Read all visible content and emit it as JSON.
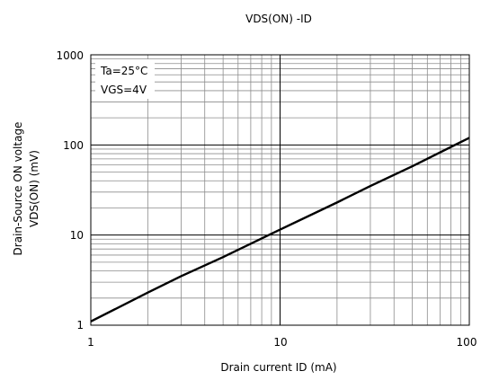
{
  "chart_data": {
    "type": "line",
    "title": "VDS(ON) -ID",
    "xlabel": "Drain current  ID (mA)",
    "ylabel_line1": "Drain-Source ON voltage",
    "ylabel_line2": "VDS(ON) (mV)",
    "x_scale": "log",
    "y_scale": "log",
    "xlim": [
      1,
      100
    ],
    "ylim": [
      1,
      1000
    ],
    "x_ticks": [
      "1",
      "10",
      "100"
    ],
    "y_ticks": [
      "1",
      "10",
      "100",
      "1000"
    ],
    "grid": true,
    "annotations": [
      "Ta=25°C",
      "VGS=4V"
    ],
    "series": [
      {
        "x": [
          1,
          2,
          3,
          5,
          10,
          20,
          30,
          50,
          100
        ],
        "y": [
          1.1,
          2.3,
          3.5,
          5.7,
          11.5,
          23,
          35,
          58,
          120
        ],
        "color": "#000000"
      }
    ]
  }
}
